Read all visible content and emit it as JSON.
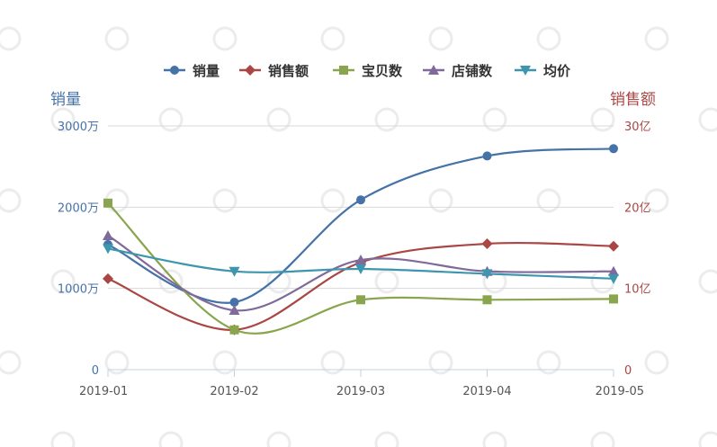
{
  "chart_data": {
    "type": "line",
    "categories": [
      "2019-01",
      "2019-02",
      "2019-03",
      "2019-04",
      "2019-05"
    ],
    "y_left": {
      "label": "销量",
      "ticks": [
        "0",
        "1000万",
        "2000万",
        "3000万"
      ],
      "range": [
        0,
        3000
      ],
      "unit": "万",
      "color": "#4572a7"
    },
    "y_right": {
      "label": "销售额",
      "ticks": [
        "0",
        "10亿",
        "20亿",
        "30亿"
      ],
      "range": [
        0,
        30
      ],
      "unit": "亿",
      "color": "#aa4643"
    },
    "grid": true,
    "legend_position": "top",
    "series": [
      {
        "name": "销量",
        "color": "#4572a7",
        "marker": "circle",
        "axis": "left",
        "values": [
          1540,
          830,
          2090,
          2630,
          2720
        ]
      },
      {
        "name": "销售额",
        "color": "#aa4643",
        "marker": "diamond",
        "axis": "right",
        "values": [
          11.2,
          4.9,
          13.2,
          15.5,
          15.2
        ]
      },
      {
        "name": "宝贝数",
        "color": "#89a54e",
        "marker": "square",
        "axis": "left",
        "values": [
          2050,
          490,
          860,
          860,
          870
        ]
      },
      {
        "name": "店铺数",
        "color": "#80699b",
        "marker": "triangle",
        "axis": "left",
        "values": [
          1650,
          730,
          1350,
          1210,
          1210
        ]
      },
      {
        "name": "均价",
        "color": "#3d96ae",
        "marker": "triangle-down",
        "axis": "left",
        "values": [
          1490,
          1210,
          1240,
          1180,
          1120
        ]
      }
    ]
  }
}
